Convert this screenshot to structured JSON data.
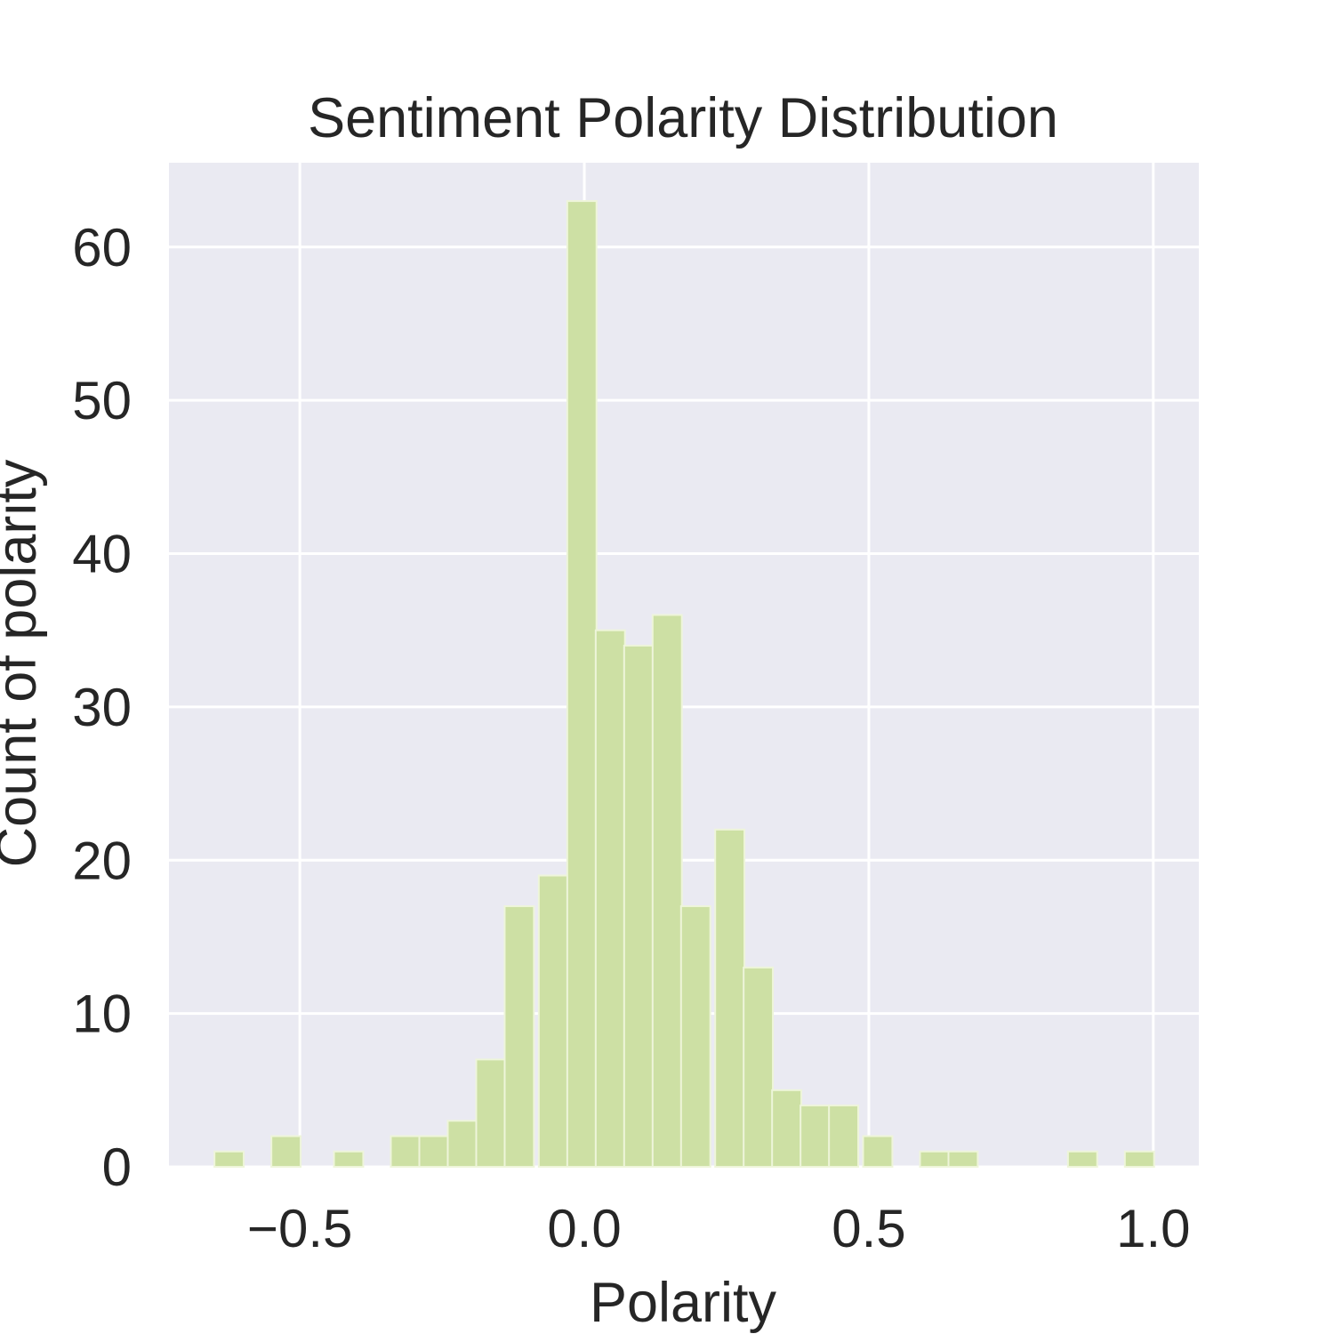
{
  "chart_data": {
    "type": "bar",
    "subtype": "histogram",
    "title": "Sentiment Polarity Distribution",
    "xlabel": "Polarity",
    "ylabel": "Count of polarity",
    "xlim": [
      -0.73,
      1.08
    ],
    "ylim": [
      0,
      65.5
    ],
    "xticks": [
      -0.5,
      0.0,
      0.5,
      1.0
    ],
    "xtick_labels": [
      "−0.5",
      "0.0",
      "0.5",
      "1.0"
    ],
    "yticks": [
      0,
      10,
      20,
      30,
      40,
      50,
      60
    ],
    "ytick_labels": [
      "0",
      "10",
      "20",
      "30",
      "40",
      "50",
      "60"
    ],
    "grid": true,
    "bin_width": 0.0514,
    "bins": [
      {
        "x0": -0.65,
        "count": 1
      },
      {
        "x0": -0.55,
        "count": 2
      },
      {
        "x0": -0.44,
        "count": 1
      },
      {
        "x0": -0.34,
        "count": 2
      },
      {
        "x0": -0.29,
        "count": 2
      },
      {
        "x0": -0.24,
        "count": 3
      },
      {
        "x0": -0.19,
        "count": 7
      },
      {
        "x0": -0.14,
        "count": 17
      },
      {
        "x0": -0.08,
        "count": 19
      },
      {
        "x0": -0.03,
        "count": 63
      },
      {
        "x0": 0.02,
        "count": 35
      },
      {
        "x0": 0.07,
        "count": 34
      },
      {
        "x0": 0.12,
        "count": 36
      },
      {
        "x0": 0.17,
        "count": 17
      },
      {
        "x0": 0.23,
        "count": 22
      },
      {
        "x0": 0.28,
        "count": 13
      },
      {
        "x0": 0.33,
        "count": 5
      },
      {
        "x0": 0.38,
        "count": 4
      },
      {
        "x0": 0.43,
        "count": 4
      },
      {
        "x0": 0.49,
        "count": 2
      },
      {
        "x0": 0.59,
        "count": 1
      },
      {
        "x0": 0.64,
        "count": 1
      },
      {
        "x0": 0.85,
        "count": 1
      },
      {
        "x0": 0.95,
        "count": 1
      }
    ],
    "colors": {
      "bar_fill": "#cde0a4",
      "bar_edge": "#eef5da",
      "plot_background": "#eaeaf2",
      "grid": "#ffffff",
      "text": "#262626"
    }
  }
}
